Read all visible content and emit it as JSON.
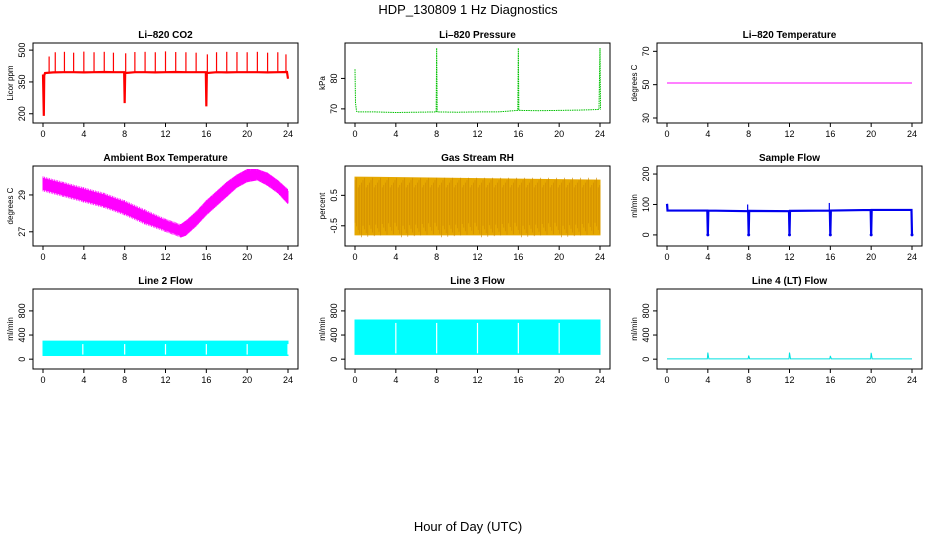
{
  "figure": {
    "title": "HDP_130809  1 Hz Diagnostics",
    "xlabel": "Hour of Day (UTC)"
  },
  "chart_data": [
    {
      "type": "line",
      "title": "Li–820 CO2",
      "ylabel": "Licor ppm",
      "color": "#ff0000",
      "xlim": [
        0,
        24
      ],
      "ylim": [
        180,
        510
      ],
      "xticks": [
        0,
        4,
        8,
        12,
        16,
        20,
        24
      ],
      "yticks": [
        200,
        350,
        500
      ],
      "x": [
        0,
        0.08,
        0.12,
        0.2,
        1,
        2,
        3,
        4,
        5,
        6,
        7,
        7.95,
        8,
        8.05,
        9,
        10,
        11,
        12,
        13,
        14,
        15,
        15.95,
        16,
        16.05,
        17,
        18,
        19,
        20,
        21,
        22,
        23,
        23.9,
        24
      ],
      "y": [
        385,
        190,
        380,
        392,
        395,
        396,
        396,
        395,
        396,
        397,
        396,
        396,
        250,
        392,
        396,
        396,
        395,
        396,
        397,
        396,
        396,
        396,
        235,
        392,
        396,
        395,
        396,
        396,
        396,
        395,
        396,
        397,
        365
      ],
      "spikes_x": [
        0.6,
        1.2,
        2.1,
        3.0,
        4.0,
        5.0,
        6.0,
        6.9,
        8.1,
        9.0,
        10.0,
        11.0,
        12.0,
        13.0,
        14.0,
        15.0,
        16.1,
        17.0,
        18.0,
        19.0,
        20.0,
        21.0,
        22.0,
        23.0,
        23.8
      ],
      "spikes_y": [
        470,
        490,
        492,
        488,
        493,
        490,
        492,
        488,
        485,
        491,
        492,
        490,
        494,
        491,
        490,
        488,
        480,
        490,
        492,
        491,
        490,
        492,
        488,
        490,
        480
      ]
    },
    {
      "type": "line",
      "title": "Li–820 Pressure",
      "ylabel": "kPa",
      "color": "#00c000",
      "xlim": [
        0,
        24
      ],
      "ylim": [
        67,
        90
      ],
      "xticks": [
        0,
        4,
        8,
        12,
        16,
        20,
        24
      ],
      "yticks": [
        70,
        80
      ],
      "x": [
        0,
        0.05,
        0.15,
        0.3,
        2,
        4,
        6,
        7.95,
        8,
        8.05,
        10,
        12,
        14,
        15.95,
        16,
        16.05,
        18,
        20,
        22,
        23.9,
        24,
        24.05
      ],
      "y": [
        83,
        72,
        69.2,
        69,
        69,
        68.8,
        68.9,
        69,
        90,
        69,
        68.9,
        69,
        69,
        69.5,
        90,
        69.5,
        69.4,
        69.5,
        69.6,
        69.8,
        90,
        69.8
      ]
    },
    {
      "type": "line",
      "title": "Li–820 Temperature",
      "ylabel": "degrees C",
      "color": "#ff00ff",
      "xlim": [
        0,
        24
      ],
      "ylim": [
        30,
        72
      ],
      "xticks": [
        0,
        4,
        8,
        12,
        16,
        20,
        24
      ],
      "yticks": [
        30,
        50,
        70
      ],
      "x": [
        0,
        24
      ],
      "y": [
        51,
        51
      ]
    },
    {
      "type": "area",
      "title": "Ambient Box Temperature",
      "ylabel": "degrees C",
      "color": "#ff00ff",
      "xlim": [
        0,
        24
      ],
      "ylim": [
        26.5,
        30.3
      ],
      "xticks": [
        0,
        4,
        8,
        12,
        16,
        20,
        24
      ],
      "yticks": [
        27,
        29
      ],
      "x": [
        0,
        2,
        4,
        6,
        8,
        10,
        12,
        13.5,
        14,
        15,
        16,
        17,
        18,
        19,
        20,
        21,
        22,
        23,
        24
      ],
      "y_low": [
        29.3,
        29.0,
        28.7,
        28.4,
        28.0,
        27.5,
        27.1,
        26.8,
        26.9,
        27.4,
        28.0,
        28.5,
        29.0,
        29.5,
        29.8,
        29.9,
        29.6,
        29.2,
        28.6
      ],
      "y_high": [
        29.9,
        29.6,
        29.3,
        29.0,
        28.6,
        28.1,
        27.6,
        27.3,
        27.5,
        28.0,
        28.6,
        29.1,
        29.6,
        30.0,
        30.3,
        30.3,
        30.1,
        29.7,
        29.2
      ]
    },
    {
      "type": "area",
      "title": "Gas Stream RH",
      "ylabel": "percent",
      "color": "#e6a800",
      "xlim": [
        0,
        24
      ],
      "ylim": [
        -1,
        1.3
      ],
      "xticks": [
        0,
        4,
        8,
        12,
        16,
        20,
        24
      ],
      "yticks": [
        -0.5,
        0.5
      ],
      "x": [
        0,
        24
      ],
      "y_low": [
        -0.8,
        -0.8
      ],
      "y_high": [
        1.1,
        1.0
      ]
    },
    {
      "type": "line",
      "title": "Sample Flow",
      "ylabel": "ml/min",
      "color": "#0000ee",
      "xlim": [
        0,
        24
      ],
      "ylim": [
        -20,
        210
      ],
      "xticks": [
        0,
        4,
        8,
        12,
        16,
        20,
        24
      ],
      "yticks": [
        0,
        100,
        200
      ],
      "x": [
        0,
        0.05,
        3.95,
        4,
        4.05,
        7.95,
        8,
        8.05,
        11.95,
        12,
        12.05,
        15.95,
        16,
        16.05,
        19.95,
        20,
        20.05,
        23.95,
        24
      ],
      "y": [
        102,
        80,
        80,
        0,
        80,
        78,
        0,
        79,
        78,
        0,
        79,
        80,
        0,
        80,
        82,
        0,
        82,
        82,
        0
      ],
      "spikes_x": [
        0.05,
        7.9,
        15.9,
        19.9
      ],
      "spikes_y": [
        102,
        100,
        105,
        85
      ]
    },
    {
      "type": "area",
      "title": "Line 2 Flow",
      "ylabel": "ml/min",
      "color": "#00ffff",
      "xlim": [
        0,
        24
      ],
      "ylim": [
        -80,
        1080
      ],
      "xticks": [
        0,
        4,
        8,
        12,
        16,
        20,
        24
      ],
      "yticks": [
        0,
        400,
        800
      ],
      "x": [
        0,
        24
      ],
      "y_low": [
        60,
        60
      ],
      "y_high": [
        300,
        300
      ],
      "gaps_x": [
        3.9,
        8,
        12,
        16,
        20,
        24
      ]
    },
    {
      "type": "area",
      "title": "Line 3 Flow",
      "ylabel": "ml/min",
      "color": "#00ffff",
      "xlim": [
        0,
        24
      ],
      "ylim": [
        -80,
        1080
      ],
      "xticks": [
        0,
        4,
        8,
        12,
        16,
        20,
        24
      ],
      "yticks": [
        0,
        400,
        800
      ],
      "x": [
        0,
        24
      ],
      "y_low": [
        80,
        80
      ],
      "y_high": [
        650,
        650
      ],
      "gaps_x": [
        4,
        8,
        12,
        16,
        20
      ]
    },
    {
      "type": "line",
      "title": "Line 4 (LT) Flow",
      "ylabel": "ml/min",
      "color": "#00e0e0",
      "xlim": [
        0,
        24
      ],
      "ylim": [
        -80,
        1080
      ],
      "xticks": [
        0,
        4,
        8,
        12,
        16,
        20,
        24
      ],
      "yticks": [
        0,
        400,
        800
      ],
      "x": [
        0,
        3.95,
        4,
        4.1,
        7.95,
        8,
        8.1,
        11.95,
        12,
        12.1,
        15.95,
        16,
        16.1,
        19.95,
        20,
        20.1,
        24
      ],
      "y": [
        5,
        5,
        110,
        5,
        5,
        60,
        5,
        5,
        110,
        5,
        5,
        55,
        5,
        5,
        105,
        5,
        5
      ]
    }
  ]
}
